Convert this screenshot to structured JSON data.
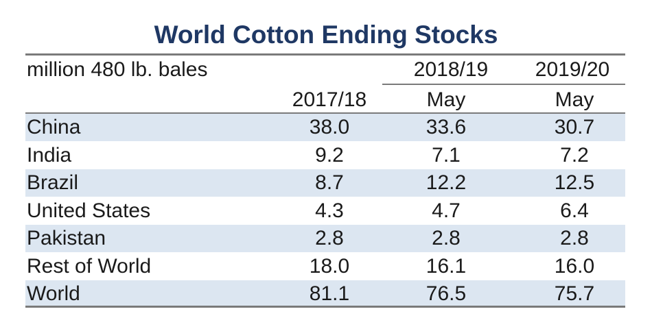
{
  "chart_data": {
    "type": "table",
    "title": "World Cotton Ending Stocks",
    "unit_label": "million 480 lb. bales",
    "column_groups": [
      "",
      "2018/19",
      "2019/20"
    ],
    "columns": [
      "2017/18",
      "May",
      "May"
    ],
    "rows": [
      {
        "label": "China",
        "values": [
          "38.0",
          "33.6",
          "30.7"
        ]
      },
      {
        "label": "India",
        "values": [
          "9.2",
          "7.1",
          "7.2"
        ]
      },
      {
        "label": "Brazil",
        "values": [
          "8.7",
          "12.2",
          "12.5"
        ]
      },
      {
        "label": "United States",
        "values": [
          "4.3",
          "4.7",
          "6.4"
        ]
      },
      {
        "label": "Pakistan",
        "values": [
          "2.8",
          "2.8",
          "2.8"
        ]
      },
      {
        "label": "Rest of World",
        "values": [
          "18.0",
          "16.1",
          "16.0"
        ]
      },
      {
        "label": "World",
        "values": [
          "81.1",
          "76.5",
          "75.7"
        ]
      }
    ],
    "colors": {
      "title": "#1f3864",
      "band": "#dce6f1",
      "rule": "#7a7a7a"
    }
  }
}
